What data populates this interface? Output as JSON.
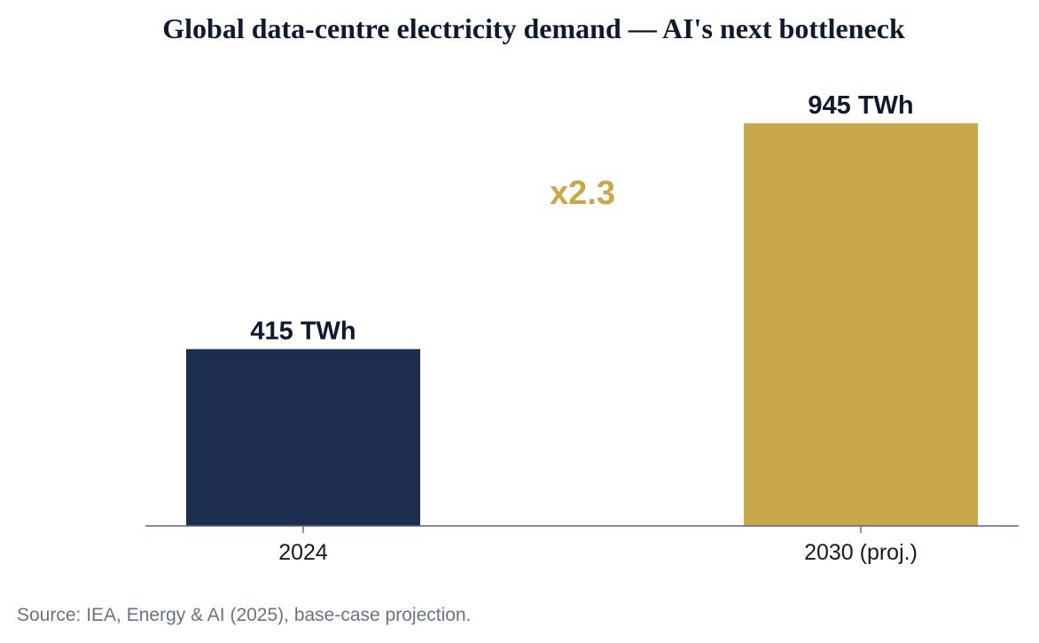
{
  "chart_data": {
    "type": "bar",
    "title": "Global data-centre electricity demand — AI's next bottleneck",
    "categories": [
      "2024",
      "2030 (proj.)"
    ],
    "values": [
      415,
      945
    ],
    "value_labels": [
      "415 TWh",
      "945 TWh"
    ],
    "unit": "TWh",
    "bar_colors": [
      "#1c2d4f",
      "#c8a84b"
    ],
    "annotation": "x2.3",
    "annotation_color": "#c8a84b",
    "ylim": [
      0,
      1000
    ],
    "grid": false,
    "legend": "none",
    "xlabel": "",
    "ylabel": ""
  },
  "source_note": "Source: IEA, Energy & AI (2025), base-case projection."
}
